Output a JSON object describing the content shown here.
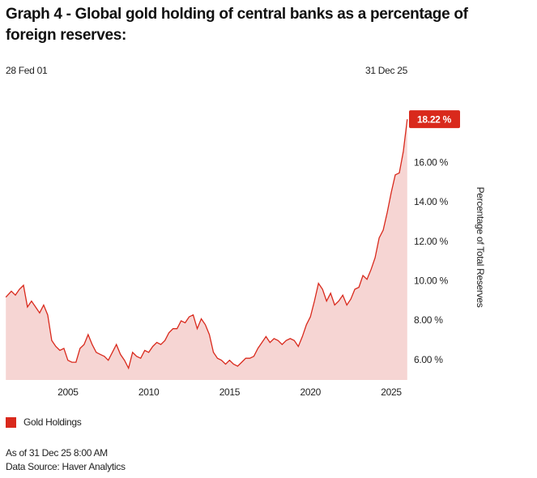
{
  "chart_data": {
    "type": "area",
    "title": "Graph 4 - Global gold holding of central banks as a percentage of foreign reserves:",
    "start_label": "28 Fed 01",
    "end_label": "31 Dec 25",
    "y_label": "Percentage of Total Reserves",
    "footer": [
      "As of 31 Dec 25 8:00 AM",
      "Data Source: Haver Analytics"
    ],
    "xlim": [
      2001.15,
      2026
    ],
    "xticks": [
      2005,
      2010,
      2015,
      2020,
      2025
    ],
    "ylim": [
      5,
      19.5
    ],
    "yticks": [
      {
        "value": 6,
        "label": "6.00 %"
      },
      {
        "value": 8,
        "label": "8.00 %"
      },
      {
        "value": 10,
        "label": "10.00 %"
      },
      {
        "value": 12,
        "label": "12.00 %"
      },
      {
        "value": 14,
        "label": "14.00 %"
      },
      {
        "value": 16,
        "label": "16.00 %"
      }
    ],
    "callout": {
      "value": 18.22,
      "label": "18.22 %"
    },
    "series": [
      {
        "name": "Gold Holdings",
        "color": "#d9291c",
        "fill": "#f6d5d3",
        "x": [
          2001.16,
          2001.5,
          2001.75,
          2002,
          2002.25,
          2002.5,
          2002.75,
          2003,
          2003.25,
          2003.5,
          2003.75,
          2004,
          2004.25,
          2004.5,
          2004.75,
          2005,
          2005.25,
          2005.5,
          2005.75,
          2006,
          2006.25,
          2006.5,
          2006.75,
          2007,
          2007.25,
          2007.5,
          2007.75,
          2008,
          2008.25,
          2008.5,
          2008.75,
          2009,
          2009.25,
          2009.5,
          2009.75,
          2010,
          2010.25,
          2010.5,
          2010.75,
          2011,
          2011.25,
          2011.5,
          2011.75,
          2012,
          2012.25,
          2012.5,
          2012.75,
          2013,
          2013.25,
          2013.5,
          2013.75,
          2014,
          2014.25,
          2014.5,
          2014.75,
          2015,
          2015.25,
          2015.5,
          2015.75,
          2016,
          2016.25,
          2016.5,
          2016.75,
          2017,
          2017.25,
          2017.5,
          2017.75,
          2018,
          2018.25,
          2018.5,
          2018.75,
          2019,
          2019.25,
          2019.5,
          2019.75,
          2020,
          2020.25,
          2020.5,
          2020.75,
          2021,
          2021.25,
          2021.5,
          2021.75,
          2022,
          2022.25,
          2022.5,
          2022.75,
          2023,
          2023.25,
          2023.5,
          2023.75,
          2024,
          2024.25,
          2024.5,
          2024.75,
          2025,
          2025.25,
          2025.5,
          2025.75,
          2025.99
        ],
        "values": [
          9.2,
          9.5,
          9.3,
          9.6,
          9.8,
          8.7,
          9.0,
          8.7,
          8.4,
          8.8,
          8.3,
          7.0,
          6.7,
          6.5,
          6.6,
          6.0,
          5.9,
          5.9,
          6.6,
          6.8,
          7.3,
          6.8,
          6.4,
          6.3,
          6.2,
          6.0,
          6.4,
          6.8,
          6.3,
          6.0,
          5.6,
          6.4,
          6.2,
          6.1,
          6.5,
          6.4,
          6.7,
          6.9,
          6.8,
          7.0,
          7.4,
          7.6,
          7.6,
          8.0,
          7.9,
          8.2,
          8.3,
          7.6,
          8.1,
          7.8,
          7.3,
          6.4,
          6.1,
          6.0,
          5.8,
          6.0,
          5.8,
          5.7,
          5.9,
          6.1,
          6.1,
          6.2,
          6.6,
          6.9,
          7.2,
          6.9,
          7.1,
          7.0,
          6.8,
          7.0,
          7.1,
          7.0,
          6.7,
          7.2,
          7.8,
          8.2,
          9.0,
          9.9,
          9.6,
          9.0,
          9.4,
          8.8,
          9.0,
          9.3,
          8.8,
          9.1,
          9.6,
          9.7,
          10.3,
          10.1,
          10.6,
          11.2,
          12.2,
          12.6,
          13.5,
          14.5,
          15.4,
          15.5,
          16.6,
          18.22
        ]
      }
    ]
  }
}
